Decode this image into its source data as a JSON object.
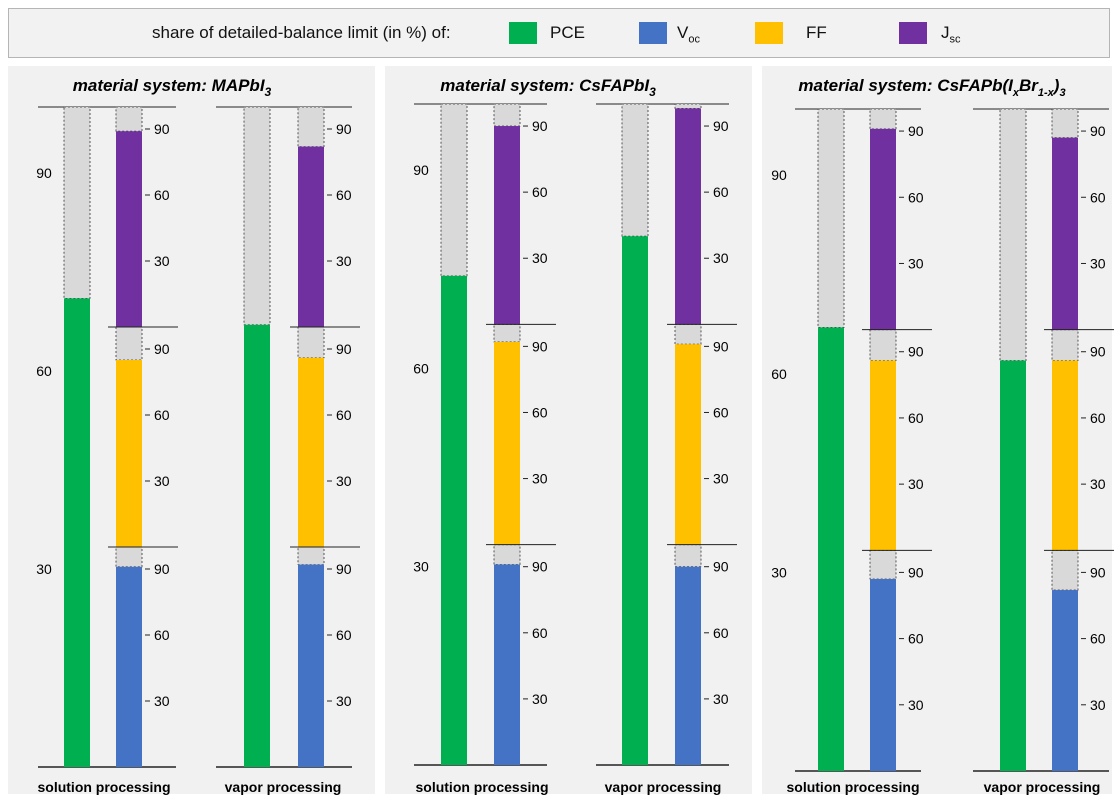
{
  "legend": {
    "prefix": "share of detailed-balance limit (in %) of:",
    "items": [
      {
        "key": "pce",
        "label": "PCE",
        "sub": "",
        "color": "#00b050"
      },
      {
        "key": "voc",
        "label": "V",
        "sub": "oc",
        "color": "#4472c4"
      },
      {
        "key": "ff",
        "label": "FF",
        "sub": "",
        "color": "#ffc000"
      },
      {
        "key": "jsc",
        "label": "J",
        "sub": "sc",
        "color": "#7030a0"
      }
    ]
  },
  "colors": {
    "empty": "#d9d9d9",
    "panel_bg": "#f1f1f1"
  },
  "chart_data": [
    {
      "type": "bar",
      "title": "material system: MAPbI",
      "title_sub": "3",
      "left_axis_ticks": [
        30,
        60,
        90
      ],
      "right_axis_ticks": [
        30,
        60,
        90
      ],
      "ylim": [
        0,
        100
      ],
      "categories": [
        "solution processing",
        "vapor processing"
      ],
      "pce": [
        71,
        67
      ],
      "voc": [
        91,
        92
      ],
      "ff": [
        85,
        86
      ],
      "jsc": [
        89,
        82
      ]
    },
    {
      "type": "bar",
      "title": "material system: CsFAPbI",
      "title_sub": "3",
      "left_axis_ticks": [
        30,
        60,
        90
      ],
      "right_axis_ticks": [
        30,
        60,
        90
      ],
      "ylim": [
        0,
        100
      ],
      "categories": [
        "solution processing",
        "vapor processing"
      ],
      "pce": [
        74,
        80
      ],
      "voc": [
        91,
        90
      ],
      "ff": [
        92,
        91
      ],
      "jsc": [
        90,
        98
      ]
    },
    {
      "type": "bar",
      "title": "material system: CsFAPb(I",
      "title_parts": [
        "x",
        "Br",
        "1-x",
        ")",
        "3"
      ],
      "left_axis_ticks": [
        30,
        60,
        90
      ],
      "right_axis_ticks": [
        30,
        60,
        90
      ],
      "ylim": [
        0,
        100
      ],
      "categories": [
        "solution processing",
        "vapor processing"
      ],
      "pce": [
        67,
        62
      ],
      "voc": [
        87,
        82
      ],
      "ff": [
        86,
        86
      ],
      "jsc": [
        91,
        87
      ]
    }
  ]
}
